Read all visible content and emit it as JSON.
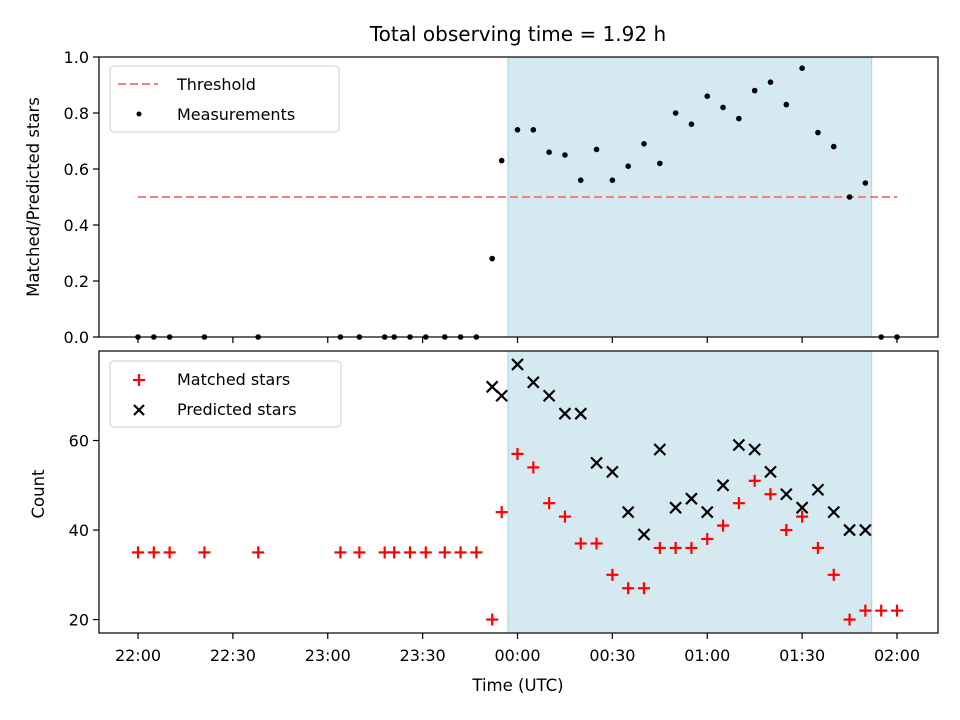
{
  "chart_data": [
    {
      "type": "scatter",
      "panel": "top",
      "title": "Total observing time = 1.92 h",
      "xlabel": "",
      "ylabel": "Matched/Predicted stars",
      "ylim": [
        0,
        1.0
      ],
      "yticks": [
        0.0,
        0.2,
        0.4,
        0.6,
        0.8,
        1.0
      ],
      "ytick_labels": [
        "0.0",
        "0.2",
        "0.4",
        "0.6",
        "0.8",
        "1.0"
      ],
      "legend_position": "top-left",
      "colors": {
        "threshold": "#f47f7f",
        "measurements": "#000000",
        "span": "#d4eaf0"
      },
      "threshold": {
        "name": "Threshold",
        "value": 0.5,
        "x_start": "22:00",
        "x_end": "02:00"
      },
      "measurements": {
        "name": "Measurements",
        "x": [
          "22:00",
          "22:05",
          "22:10",
          "22:21",
          "22:38",
          "23:04",
          "23:10",
          "23:18",
          "23:21",
          "23:26",
          "23:31",
          "23:37",
          "23:42",
          "23:47",
          "23:52",
          "23:55",
          "00:00",
          "00:05",
          "00:10",
          "00:15",
          "00:20",
          "00:25",
          "00:30",
          "00:35",
          "00:40",
          "00:45",
          "00:50",
          "00:55",
          "01:00",
          "01:05",
          "01:10",
          "01:15",
          "01:20",
          "01:25",
          "01:30",
          "01:35",
          "01:40",
          "01:45",
          "01:50",
          "01:55",
          "02:00"
        ],
        "y": [
          0.0,
          0.0,
          0.0,
          0.0,
          0.0,
          0.0,
          0.0,
          0.0,
          0.0,
          0.0,
          0.0,
          0.0,
          0.0,
          0.0,
          0.28,
          0.63,
          0.74,
          0.74,
          0.66,
          0.65,
          0.56,
          0.67,
          0.56,
          0.61,
          0.69,
          0.62,
          0.8,
          0.76,
          0.86,
          0.82,
          0.78,
          0.88,
          0.91,
          0.83,
          0.96,
          0.73,
          0.68,
          0.5,
          0.55,
          0.0,
          0.0
        ]
      },
      "observing_window": {
        "start": "23:57",
        "end": "01:52"
      }
    },
    {
      "type": "scatter",
      "panel": "bottom",
      "title": "",
      "xlabel": "Time (UTC)",
      "ylabel": "Count",
      "ylim": [
        17,
        80
      ],
      "yticks": [
        20,
        40,
        60
      ],
      "ytick_labels": [
        "20",
        "40",
        "60"
      ],
      "xticks": [
        "22:00",
        "22:30",
        "23:00",
        "23:30",
        "00:00",
        "00:30",
        "01:00",
        "01:30",
        "02:00"
      ],
      "legend_position": "top-left",
      "colors": {
        "matched": "#ff0000",
        "predicted": "#000000",
        "span": "#d4eaf0"
      },
      "series": [
        {
          "name": "Matched stars",
          "x": [
            "22:00",
            "22:05",
            "22:10",
            "22:21",
            "22:38",
            "23:04",
            "23:10",
            "23:18",
            "23:21",
            "23:26",
            "23:31",
            "23:37",
            "23:42",
            "23:47",
            "23:52",
            "23:55",
            "00:00",
            "00:05",
            "00:10",
            "00:15",
            "00:20",
            "00:25",
            "00:30",
            "00:35",
            "00:40",
            "00:45",
            "00:50",
            "00:55",
            "01:00",
            "01:05",
            "01:10",
            "01:15",
            "01:20",
            "01:25",
            "01:30",
            "01:35",
            "01:40",
            "01:45",
            "01:50",
            "01:55",
            "02:00"
          ],
          "y": [
            35,
            35,
            35,
            35,
            35,
            35,
            35,
            35,
            35,
            35,
            35,
            35,
            35,
            35,
            20,
            44,
            57,
            54,
            46,
            43,
            37,
            37,
            30,
            27,
            27,
            36,
            36,
            36,
            38,
            41,
            46,
            51,
            48,
            40,
            43,
            36,
            30,
            20,
            22,
            22,
            22
          ]
        },
        {
          "name": "Predicted stars",
          "x": [
            "23:52",
            "23:55",
            "00:00",
            "00:05",
            "00:10",
            "00:15",
            "00:20",
            "00:25",
            "00:30",
            "00:35",
            "00:40",
            "00:45",
            "00:50",
            "00:55",
            "01:00",
            "01:05",
            "01:10",
            "01:15",
            "01:20",
            "01:25",
            "01:30",
            "01:35",
            "01:40",
            "01:45",
            "01:50"
          ],
          "y": [
            72,
            70,
            77,
            73,
            70,
            66,
            66,
            55,
            53,
            44,
            39,
            58,
            45,
            47,
            44,
            50,
            59,
            58,
            53,
            48,
            45,
            49,
            44,
            40,
            40
          ]
        }
      ],
      "observing_window": {
        "start": "23:57",
        "end": "01:52"
      }
    }
  ]
}
